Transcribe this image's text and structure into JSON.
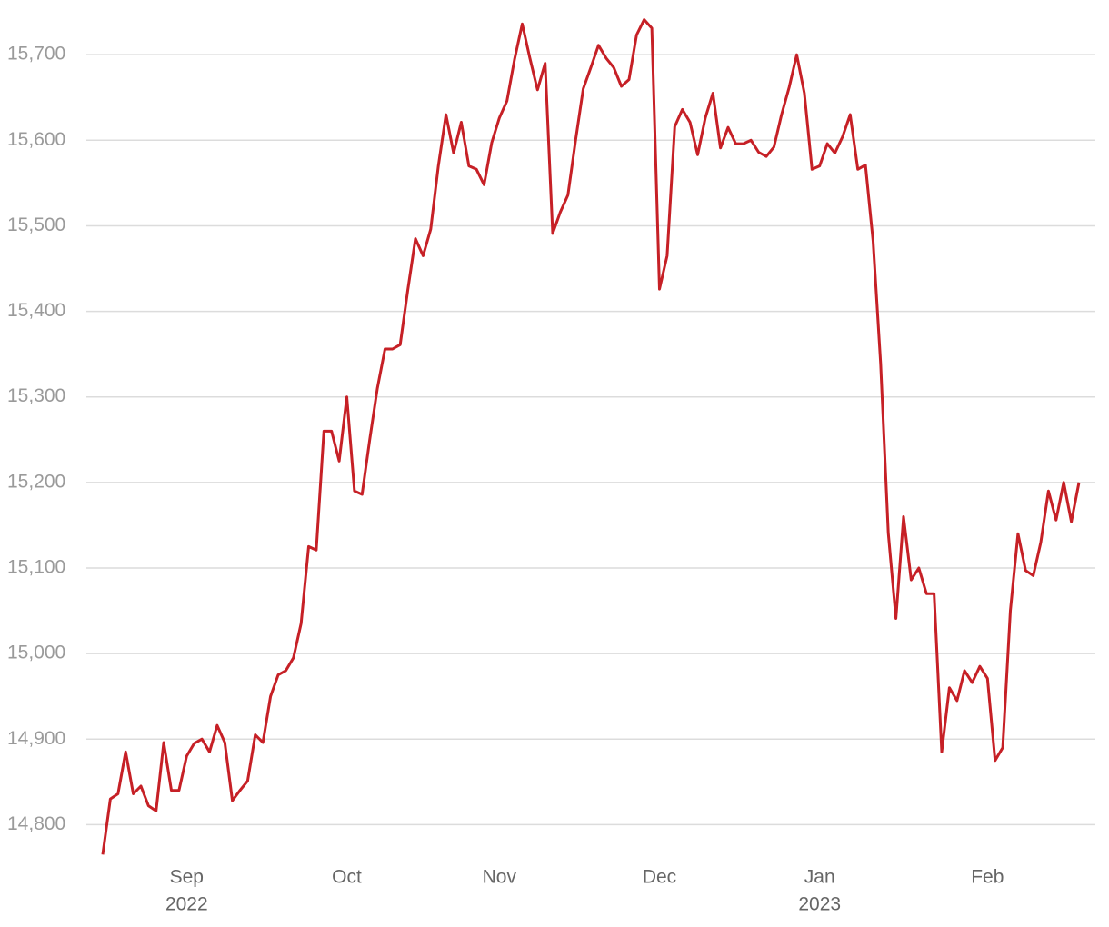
{
  "chart_data": {
    "type": "line",
    "categories": [
      null,
      null,
      null,
      null,
      null,
      null,
      null,
      null,
      null,
      null,
      null,
      "Sep",
      null,
      null,
      null,
      null,
      null,
      null,
      null,
      null,
      null,
      null,
      null,
      null,
      null,
      null,
      null,
      null,
      null,
      null,
      null,
      null,
      "Oct",
      null,
      null,
      null,
      null,
      null,
      null,
      null,
      null,
      null,
      null,
      null,
      null,
      null,
      null,
      null,
      null,
      null,
      null,
      null,
      "Nov",
      null,
      null,
      null,
      null,
      null,
      null,
      null,
      null,
      null,
      null,
      null,
      null,
      null,
      null,
      null,
      null,
      null,
      null,
      null,
      null,
      "Dec",
      null,
      null,
      null,
      null,
      null,
      null,
      null,
      null,
      null,
      null,
      null,
      null,
      null,
      null,
      null,
      null,
      null,
      null,
      null,
      null,
      "Jan",
      null,
      null,
      null,
      null,
      null,
      null,
      null,
      null,
      null,
      null,
      null,
      null,
      null,
      null,
      null,
      null,
      null,
      null,
      null,
      null,
      null,
      "Feb",
      null,
      null,
      null,
      null,
      null,
      null,
      null,
      null,
      null,
      null,
      null,
      null
    ],
    "category_years": [
      null,
      null,
      null,
      null,
      null,
      null,
      null,
      null,
      null,
      null,
      null,
      "2022",
      null,
      null,
      null,
      null,
      null,
      null,
      null,
      null,
      null,
      null,
      null,
      null,
      null,
      null,
      null,
      null,
      null,
      null,
      null,
      null,
      null,
      null,
      null,
      null,
      null,
      null,
      null,
      null,
      null,
      null,
      null,
      null,
      null,
      null,
      null,
      null,
      null,
      null,
      null,
      null,
      null,
      null,
      null,
      null,
      null,
      null,
      null,
      null,
      null,
      null,
      null,
      null,
      null,
      null,
      null,
      null,
      null,
      null,
      null,
      null,
      null,
      null,
      null,
      null,
      null,
      null,
      null,
      null,
      null,
      null,
      null,
      null,
      null,
      null,
      null,
      null,
      null,
      null,
      null,
      null,
      null,
      null,
      "2023",
      null,
      null,
      null,
      null,
      null,
      null,
      null,
      null,
      null,
      null,
      null,
      null,
      null,
      null,
      null,
      null,
      null,
      null,
      null,
      null,
      null,
      null,
      null,
      null,
      null,
      null,
      null,
      null,
      null,
      null,
      null,
      null,
      null,
      null
    ],
    "values": [
      14765,
      14830,
      14836,
      14885,
      14836,
      14845,
      14822,
      14816,
      14896,
      14840,
      14840,
      14880,
      14895,
      14900,
      14885,
      14916,
      14896,
      14828,
      14840,
      14851,
      14905,
      14896,
      14950,
      14975,
      14980,
      14995,
      15035,
      15125,
      15121,
      15260,
      15260,
      15225,
      15300,
      15190,
      15186,
      15250,
      15310,
      15356,
      15356,
      15361,
      15425,
      15485,
      15465,
      15496,
      15570,
      15630,
      15585,
      15621,
      15570,
      15566,
      15548,
      15597,
      15626,
      15646,
      15695,
      15736,
      15696,
      15659,
      15690,
      15491,
      15516,
      15536,
      15600,
      15660,
      15685,
      15711,
      15696,
      15685,
      15663,
      15671,
      15723,
      15741,
      15731,
      15426,
      15465,
      15616,
      15636,
      15621,
      15583,
      15626,
      15655,
      15591,
      15615,
      15596,
      15596,
      15600,
      15586,
      15581,
      15592,
      15630,
      15662,
      15700,
      15655,
      15566,
      15570,
      15596,
      15585,
      15604,
      15630,
      15566,
      15571,
      15482,
      15339,
      15141,
      15041,
      15160,
      15086,
      15100,
      15070,
      15070,
      14885,
      14960,
      14945,
      14980,
      14966,
      14985,
      14971,
      14875,
      14890,
      15050,
      15140,
      15097,
      15091,
      15130,
      15190,
      15156,
      15200,
      15154,
      15200
    ],
    "color": "#c62026",
    "ylim": [
      14760,
      15748
    ],
    "yticks": [
      {
        "value": 14800,
        "label": "14,800"
      },
      {
        "value": 14900,
        "label": "14,900"
      },
      {
        "value": 15000,
        "label": "15,000"
      },
      {
        "value": 15100,
        "label": "15,100"
      },
      {
        "value": 15200,
        "label": "15,200"
      },
      {
        "value": 15300,
        "label": "15,300"
      },
      {
        "value": 15400,
        "label": "15,400"
      },
      {
        "value": 15500,
        "label": "15,500"
      },
      {
        "value": 15600,
        "label": "15,600"
      },
      {
        "value": 15700,
        "label": "15,700"
      }
    ],
    "grid": true
  }
}
